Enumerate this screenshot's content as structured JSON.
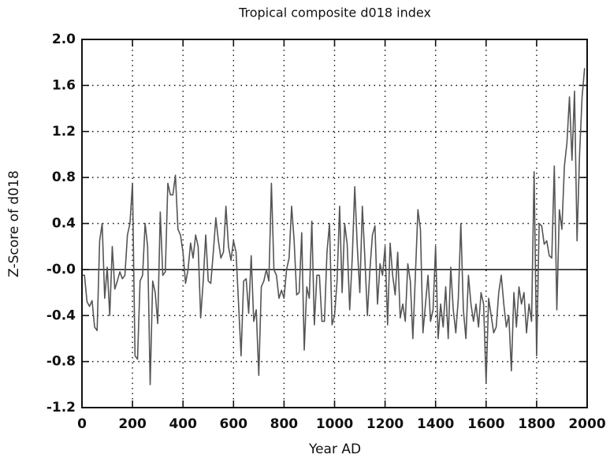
{
  "chart_data": {
    "type": "line",
    "title": "Tropical composite d018 index",
    "x_label": "Year AD",
    "y_label": "Z-Score of d018",
    "color": "#555555",
    "grid": true,
    "xlim": [
      0,
      2000
    ],
    "xticks": [
      0,
      200,
      400,
      600,
      800,
      1000,
      1200,
      1400,
      1600,
      1800,
      2000
    ],
    "ylim": [
      -1.2,
      2.0
    ],
    "yticks": [
      {
        "value": -1.2,
        "label": "-1.2"
      },
      {
        "value": -0.8,
        "label": "-0.8"
      },
      {
        "value": -0.4,
        "label": "-0.4"
      },
      {
        "value": 0,
        "label": "-0.0"
      },
      {
        "value": 0.4,
        "label": "0.4"
      },
      {
        "value": 0.8,
        "label": "0.8"
      },
      {
        "value": 1.2,
        "label": "1.2"
      },
      {
        "value": 1.6,
        "label": "1.6"
      },
      {
        "value": 2.0,
        "label": "2.0"
      }
    ],
    "x": [
      0,
      10,
      20,
      30,
      40,
      50,
      60,
      70,
      80,
      90,
      100,
      110,
      120,
      130,
      140,
      150,
      160,
      170,
      180,
      190,
      200,
      210,
      220,
      230,
      240,
      250,
      260,
      270,
      280,
      290,
      300,
      310,
      320,
      330,
      340,
      350,
      360,
      370,
      380,
      390,
      400,
      410,
      420,
      430,
      440,
      450,
      460,
      470,
      480,
      490,
      500,
      510,
      520,
      530,
      540,
      550,
      560,
      570,
      580,
      590,
      600,
      610,
      620,
      630,
      640,
      650,
      660,
      670,
      680,
      690,
      700,
      710,
      720,
      730,
      740,
      750,
      760,
      770,
      780,
      790,
      800,
      810,
      820,
      830,
      840,
      850,
      860,
      870,
      880,
      890,
      900,
      910,
      920,
      930,
      940,
      950,
      960,
      970,
      980,
      990,
      1000,
      1010,
      1020,
      1030,
      1040,
      1050,
      1060,
      1070,
      1080,
      1090,
      1100,
      1110,
      1120,
      1130,
      1140,
      1150,
      1160,
      1170,
      1180,
      1190,
      1200,
      1210,
      1220,
      1230,
      1240,
      1250,
      1260,
      1270,
      1280,
      1290,
      1300,
      1310,
      1320,
      1330,
      1340,
      1350,
      1360,
      1370,
      1380,
      1390,
      1400,
      1410,
      1420,
      1430,
      1440,
      1450,
      1460,
      1470,
      1480,
      1490,
      1500,
      1510,
      1520,
      1530,
      1540,
      1550,
      1560,
      1570,
      1580,
      1590,
      1600,
      1610,
      1620,
      1630,
      1640,
      1650,
      1660,
      1670,
      1680,
      1690,
      1700,
      1710,
      1720,
      1730,
      1740,
      1750,
      1760,
      1770,
      1780,
      1790,
      1800,
      1810,
      1820,
      1830,
      1840,
      1850,
      1860,
      1870,
      1880,
      1890,
      1900,
      1910,
      1920,
      1930,
      1940,
      1950,
      1960,
      1970,
      1980,
      1990
    ],
    "values": [
      -0.05,
      -0.05,
      -0.28,
      -0.32,
      -0.27,
      -0.5,
      -0.53,
      0.25,
      0.4,
      -0.25,
      0.02,
      -0.4,
      0.2,
      -0.17,
      -0.1,
      -0.02,
      -0.08,
      -0.05,
      0.3,
      0.4,
      0.75,
      -0.75,
      -0.78,
      -0.1,
      -0.05,
      0.4,
      0.2,
      -1.0,
      -0.1,
      -0.2,
      -0.47,
      0.5,
      -0.05,
      -0.02,
      0.75,
      0.65,
      0.65,
      0.82,
      0.35,
      0.3,
      0.15,
      -0.12,
      0.0,
      0.23,
      0.1,
      0.3,
      0.2,
      -0.42,
      -0.1,
      0.3,
      -0.1,
      -0.12,
      0.15,
      0.45,
      0.25,
      0.1,
      0.15,
      0.55,
      0.2,
      0.08,
      0.25,
      0.15,
      -0.3,
      -0.75,
      -0.1,
      -0.08,
      -0.38,
      0.12,
      -0.45,
      -0.35,
      -0.92,
      -0.15,
      -0.1,
      0.0,
      -0.1,
      0.75,
      0.0,
      -0.05,
      -0.25,
      -0.18,
      -0.25,
      0.0,
      0.1,
      0.55,
      0.25,
      -0.22,
      -0.2,
      0.32,
      -0.7,
      -0.15,
      -0.25,
      0.42,
      -0.48,
      -0.05,
      -0.05,
      -0.45,
      -0.45,
      0.15,
      0.4,
      -0.48,
      -0.4,
      -0.1,
      0.55,
      -0.2,
      0.4,
      0.22,
      -0.35,
      0.1,
      0.72,
      0.2,
      -0.2,
      0.55,
      0.1,
      -0.4,
      0.0,
      0.3,
      0.38,
      -0.3,
      0.05,
      -0.05,
      0.2,
      -0.48,
      0.23,
      -0.05,
      -0.22,
      0.15,
      -0.42,
      -0.3,
      -0.45,
      0.05,
      -0.1,
      -0.6,
      -0.05,
      0.52,
      0.35,
      -0.55,
      -0.3,
      -0.05,
      -0.45,
      -0.35,
      0.2,
      -0.6,
      -0.3,
      -0.5,
      -0.15,
      -0.6,
      0.02,
      -0.35,
      -0.55,
      -0.25,
      0.4,
      -0.35,
      -0.6,
      -0.05,
      -0.3,
      -0.45,
      -0.3,
      -0.5,
      -0.2,
      -0.3,
      -0.98,
      -0.25,
      -0.4,
      -0.55,
      -0.5,
      -0.2,
      -0.05,
      -0.3,
      -0.5,
      -0.4,
      -0.88,
      -0.2,
      -0.5,
      -0.15,
      -0.3,
      -0.2,
      -0.55,
      -0.3,
      -0.45,
      0.85,
      -0.75,
      0.4,
      0.38,
      0.22,
      0.25,
      0.12,
      0.1,
      0.9,
      -0.35,
      0.52,
      0.35,
      0.9,
      1.1,
      1.5,
      0.95,
      1.55,
      0.25,
      1.0,
      1.5,
      1.75
    ]
  }
}
